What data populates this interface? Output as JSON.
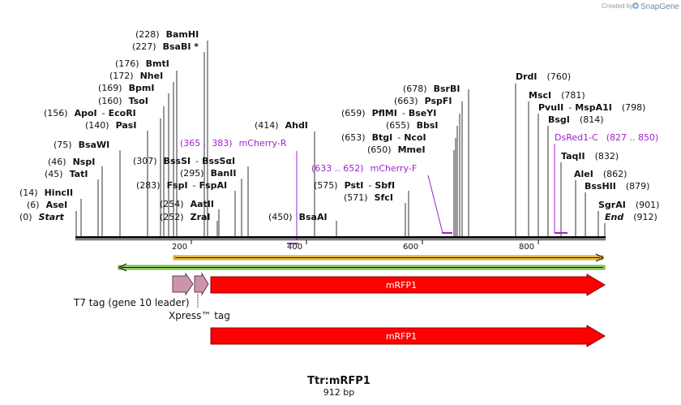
{
  "watermark": {
    "created_by": "Created by",
    "brand": "SnapGene"
  },
  "title": "Ttr:mRFP1",
  "length": "912 bp",
  "sites": [
    {
      "pos": "(228)",
      "name": "BamHI"
    },
    {
      "pos": "(227)",
      "name": "BsaBI *"
    },
    {
      "pos": "(176)",
      "name": "BmtI"
    },
    {
      "pos": "(172)",
      "name": "NheI"
    },
    {
      "pos": "(169)",
      "name": "BpmI"
    },
    {
      "pos": "(160)",
      "name": "TsoI"
    },
    {
      "pos": "(156)",
      "name": "ApoI",
      "sep": "-",
      "name2": "EcoRI"
    },
    {
      "pos": "(140)",
      "name": "PasI"
    },
    {
      "pos": "(75)",
      "name": "BsaWI"
    },
    {
      "pos": "(46)",
      "name": "NspI"
    },
    {
      "pos": "(45)",
      "name": "TatI"
    },
    {
      "pos": "(14)",
      "name": "HincII"
    },
    {
      "pos": "(6)",
      "name": "AseI"
    },
    {
      "pos": "(0)",
      "name": "Start"
    },
    {
      "pos": "(307)",
      "name": "BssSI",
      "sep": "-",
      "name2": "BssSαI"
    },
    {
      "pos": "(295)",
      "name": "BanII"
    },
    {
      "pos": "(283)",
      "name": "FspI",
      "sep": "-",
      "name2": "FspAI"
    },
    {
      "pos": "(254)",
      "name": "AatII"
    },
    {
      "pos": "(252)",
      "name": "ZraI"
    },
    {
      "pos": "(414)",
      "name": "AhdI"
    },
    {
      "pos": "(450)",
      "name": "BsaAI"
    },
    {
      "pos": "(678)",
      "name": "BsrBI"
    },
    {
      "pos": "(663)",
      "name": "PspFI"
    },
    {
      "pos": "(659)",
      "name": "PflMI",
      "sep": "-",
      "name2": "BseYI"
    },
    {
      "pos": "(655)",
      "name": "BbsI"
    },
    {
      "pos": "(653)",
      "name": "BtgI",
      "sep": "-",
      "name2": "NcoI"
    },
    {
      "pos": "(650)",
      "name": "MmeI"
    },
    {
      "pos": "(575)",
      "name": "PstI",
      "sep": "-",
      "name2": "SbfI"
    },
    {
      "pos": "(571)",
      "name": "SfcI"
    },
    {
      "pos": "(760)",
      "name": "DrdI"
    },
    {
      "pos": "(781)",
      "name": "MscI"
    },
    {
      "pos": "(798)",
      "name": "PvuII",
      "sep": "-",
      "name2": "MspA1I"
    },
    {
      "pos": "(814)",
      "name": "BsgI"
    },
    {
      "pos": "(832)",
      "name": "TaqII"
    },
    {
      "pos": "(862)",
      "name": "AleI"
    },
    {
      "pos": "(879)",
      "name": "BssHII"
    },
    {
      "pos": "(901)",
      "name": "SgrAI"
    },
    {
      "pos": "(912)",
      "name": "End"
    }
  ],
  "primers": [
    {
      "range": "(365 .. 383)",
      "name": "mCherry-R"
    },
    {
      "range": "(633 .. 652)",
      "name": "mCherry-F"
    },
    {
      "range": "(827 .. 850)",
      "name": "DsRed1-C"
    }
  ],
  "ticks": [
    "200",
    "400",
    "600",
    "800"
  ],
  "features": {
    "t7_label": "T7 tag (gene 10 leader)",
    "xpress_label": "Xpress™ tag",
    "mrfp1_label": "mRFP1",
    "mrfp1_translation_label": "mRFP1"
  },
  "colors": {
    "feature_red": "#ff0000",
    "tag_pink": "#c994ac",
    "primer_purple": "#a020d0",
    "orf_yellow": "#f2c24a",
    "orf_green": "#9ad36a"
  }
}
